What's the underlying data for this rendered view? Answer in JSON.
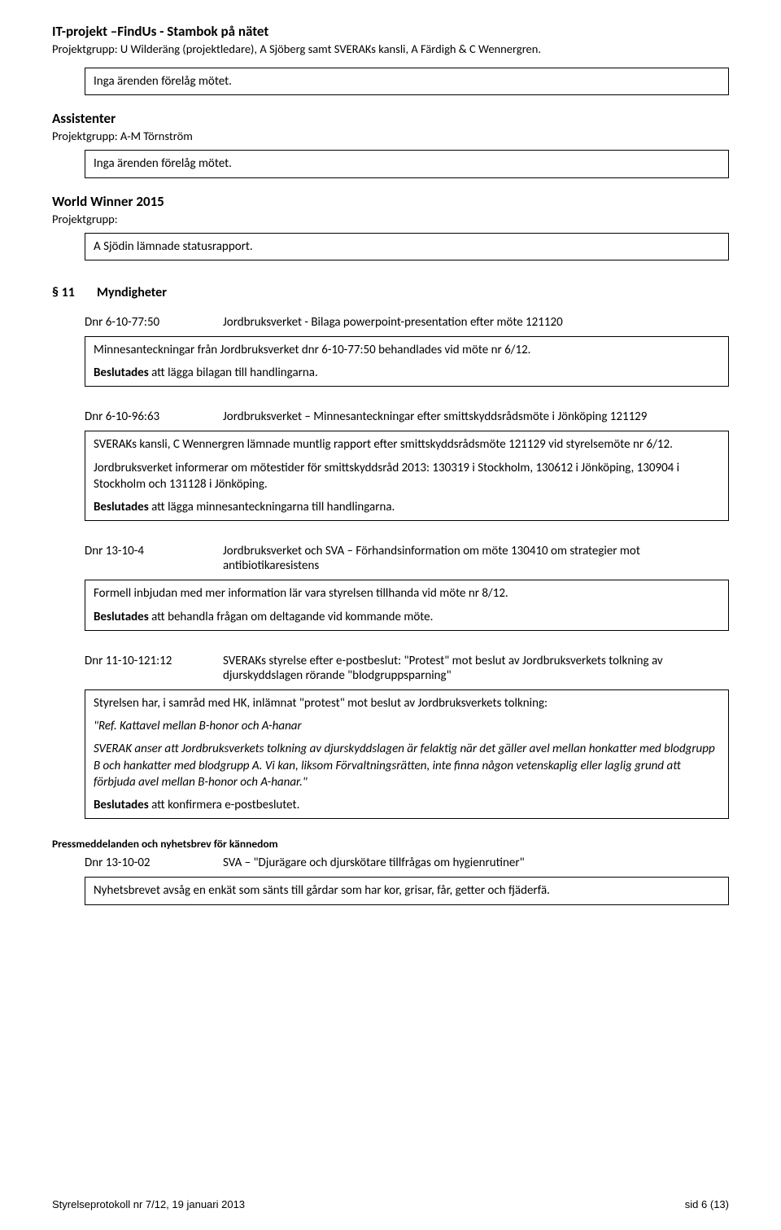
{
  "header": {
    "title": "IT-projekt –FindUs - Stambok på nätet",
    "subtitle": "Projektgrupp: U Wilderäng (projektledare), A Sjöberg samt SVERAKs kansli, A Färdigh & C Wennergren."
  },
  "box1": "Inga ärenden förelåg mötet.",
  "section_assist": {
    "title": "Assistenter",
    "sub": "Projektgrupp: A-M Törnström",
    "box": "Inga ärenden förelåg mötet."
  },
  "section_ww": {
    "title": "World Winner 2015",
    "sub": "Projektgrupp:",
    "box": "A Sjödin lämnade statusrapport."
  },
  "para11": {
    "num": "§ 11",
    "title": "Myndigheter"
  },
  "item_a": {
    "dnr": "Dnr 6-10-77:50",
    "desc": "Jordbruksverket - Bilaga powerpoint-presentation efter möte 121120",
    "box_line1": "Minnesanteckningar från Jordbruksverket dnr 6-10-77:50 behandlades vid möte nr 6/12.",
    "box_line2_bold": "Beslutades",
    "box_line2_rest": " att lägga bilagan till handlingarna."
  },
  "item_b": {
    "dnr": "Dnr 6-10-96:63",
    "desc": "Jordbruksverket – Minnesanteckningar efter smittskyddsrådsmöte i Jönköping 121129",
    "box_p1": "SVERAKs kansli, C Wennergren lämnade muntlig rapport efter smittskyddsrådsmöte 121129 vid styrelsemöte nr 6/12.",
    "box_p2": "Jordbruksverket informerar om mötestider för smittskyddsråd 2013: 130319 i Stockholm, 130612 i Jönköping, 130904 i Stockholm och 131128 i Jönköping.",
    "box_p3_bold": "Beslutades",
    "box_p3_rest": " att lägga minnesanteckningarna till handlingarna."
  },
  "item_c": {
    "dnr": "Dnr 13-10-4",
    "desc": "Jordbruksverket och SVA – Förhandsinformation om möte 130410 om strategier mot antibiotikaresistens",
    "box_p1": "Formell inbjudan med mer information lär vara styrelsen tillhanda vid möte nr 8/12.",
    "box_p2_bold": "Beslutades",
    "box_p2_rest": " att behandla frågan om deltagande vid kommande möte."
  },
  "item_d": {
    "dnr": "Dnr 11-10-121:12",
    "desc": "SVERAKs styrelse efter e-postbeslut: \"Protest\" mot beslut av Jordbruksverkets tolkning av djurskyddslagen rörande \"blodgruppsparning\"",
    "box_p1": "Styrelsen har, i samråd med HK, inlämnat \"protest\" mot beslut av Jordbruksverkets tolkning:",
    "box_p2_italic": "\"Ref. Kattavel mellan B-honor och A-hanar",
    "box_p3_italic": "SVERAK anser att Jordbruksverkets tolkning av djurskyddslagen är felaktig när det gäller avel mellan honkatter med blodgrupp B och hankatter med blodgrupp A. Vi kan, liksom Förvaltningsrätten, inte finna någon vetenskaplig eller laglig grund att förbjuda avel mellan B-honor och A-hanar.\"",
    "box_p4_bold": "Beslutades",
    "box_p4_rest": " att konfirmera e-postbeslutet."
  },
  "press": {
    "heading": "Pressmeddelanden och nyhetsbrev för kännedom",
    "dnr": "Dnr 13-10-02",
    "desc": "SVA – \"Djurägare och djurskötare tillfrågas om hygienrutiner\"",
    "box": "Nyhetsbrevet avsåg en enkät som sänts till gårdar som har kor, grisar, får, getter och fjäderfä."
  },
  "footer": {
    "left": "Styrelseprotokoll nr 7/12, 19 januari 2013",
    "right": "sid 6 (13)"
  }
}
